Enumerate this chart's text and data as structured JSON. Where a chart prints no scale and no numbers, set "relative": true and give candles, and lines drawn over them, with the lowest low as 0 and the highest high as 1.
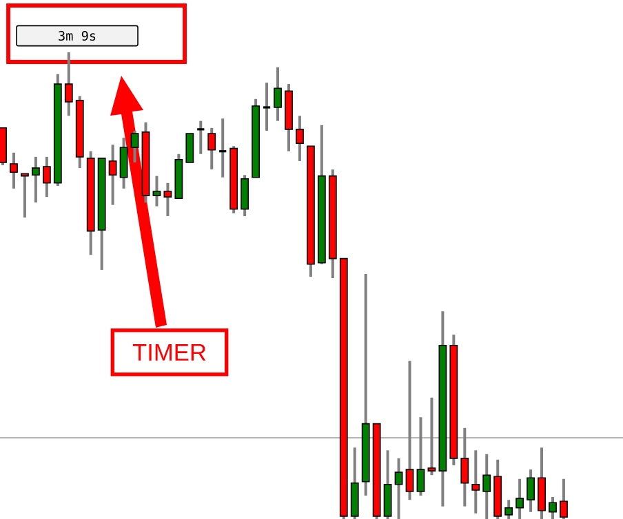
{
  "chart_data": {
    "type": "candlestick",
    "relative": true,
    "categories": [
      null,
      null,
      null,
      null,
      null,
      null,
      null,
      null,
      null,
      null,
      null,
      null,
      null,
      null,
      null,
      null,
      null,
      null,
      null,
      null,
      null,
      null,
      null,
      null,
      null,
      null,
      null,
      null,
      null,
      null,
      null,
      null,
      null,
      null,
      null,
      null,
      null,
      null,
      null,
      null,
      null,
      null,
      null,
      null,
      null,
      null,
      null,
      null,
      null,
      null,
      null,
      null
    ],
    "ohlc": [
      [
        0.838,
        0.838,
        0.758,
        0.764
      ],
      [
        0.761,
        0.785,
        0.708,
        0.743
      ],
      [
        0.74,
        0.74,
        0.646,
        0.735
      ],
      [
        0.737,
        0.776,
        0.678,
        0.752
      ],
      [
        0.755,
        0.776,
        0.69,
        0.72
      ],
      [
        0.72,
        0.953,
        0.714,
        0.932
      ],
      [
        0.932,
        1.0,
        0.864,
        0.894
      ],
      [
        0.897,
        0.906,
        0.752,
        0.776
      ],
      [
        0.773,
        0.788,
        0.566,
        0.617
      ],
      [
        0.619,
        0.773,
        0.534,
        0.773
      ],
      [
        0.767,
        0.802,
        0.673,
        0.737
      ],
      [
        0.732,
        0.817,
        0.708,
        0.796
      ],
      [
        0.796,
        0.832,
        0.764,
        0.826
      ],
      [
        0.829,
        0.85,
        0.678,
        0.693
      ],
      [
        0.693,
        0.735,
        0.67,
        0.702
      ],
      [
        0.702,
        0.72,
        0.649,
        0.69
      ],
      [
        0.687,
        0.782,
        0.687,
        0.77
      ],
      [
        0.764,
        0.826,
        0.764,
        0.826
      ],
      [
        0.835,
        0.853,
        0.782,
        0.835
      ],
      [
        0.826,
        0.838,
        0.749,
        0.791
      ],
      [
        0.788,
        0.858,
        0.732,
        0.788
      ],
      [
        0.794,
        0.799,
        0.655,
        0.664
      ],
      [
        0.664,
        0.737,
        0.649,
        0.729
      ],
      [
        0.732,
        0.9,
        0.732,
        0.885
      ],
      [
        0.882,
        0.935,
        0.832,
        0.882
      ],
      [
        0.882,
        0.968,
        0.853,
        0.923
      ],
      [
        0.917,
        0.932,
        0.788,
        0.835
      ],
      [
        0.835,
        0.864,
        0.767,
        0.805
      ],
      [
        0.799,
        0.799,
        0.519,
        0.546
      ],
      [
        0.549,
        0.844,
        0.546,
        0.735
      ],
      [
        0.735,
        0.749,
        0.516,
        0.558
      ],
      [
        0.558,
        0.558,
        0,
        0.006
      ],
      [
        0.006,
        0.153,
        0,
        0.077
      ],
      [
        0.08,
        0.525,
        0.05,
        0.204
      ],
      [
        0.204,
        0.204,
        0,
        0.006
      ],
      [
        0.006,
        0.147,
        0,
        0.074
      ],
      [
        0.074,
        0.13,
        0,
        0.1
      ],
      [
        0.106,
        0.339,
        0.041,
        0.059
      ],
      [
        0.059,
        0.218,
        0.05,
        0.106
      ],
      [
        0.109,
        0.26,
        0.094,
        0.103
      ],
      [
        0.103,
        0.445,
        0.027,
        0.372
      ],
      [
        0.372,
        0.395,
        0.115,
        0.13
      ],
      [
        0.13,
        0.195,
        0.027,
        0.077
      ],
      [
        0.074,
        0.147,
        0.012,
        0.062
      ],
      [
        0.059,
        0.139,
        0,
        0.094
      ],
      [
        0.091,
        0.127,
        0,
        0.006
      ],
      [
        0.009,
        0.041,
        0,
        0.024
      ],
      [
        0.024,
        0.086,
        0,
        0.044
      ],
      [
        0.041,
        0.106,
        0.015,
        0.088
      ],
      [
        0.088,
        0.153,
        0,
        0.018
      ],
      [
        0.015,
        0.047,
        0,
        0.035
      ],
      [
        0.038,
        0.086,
        0,
        0.004
      ]
    ],
    "ref_lines": [
      {
        "axis": "y",
        "value": 0.174,
        "color": "#b4b4b4"
      }
    ],
    "annotations": [
      "3m 9s",
      "TIMER"
    ]
  }
}
